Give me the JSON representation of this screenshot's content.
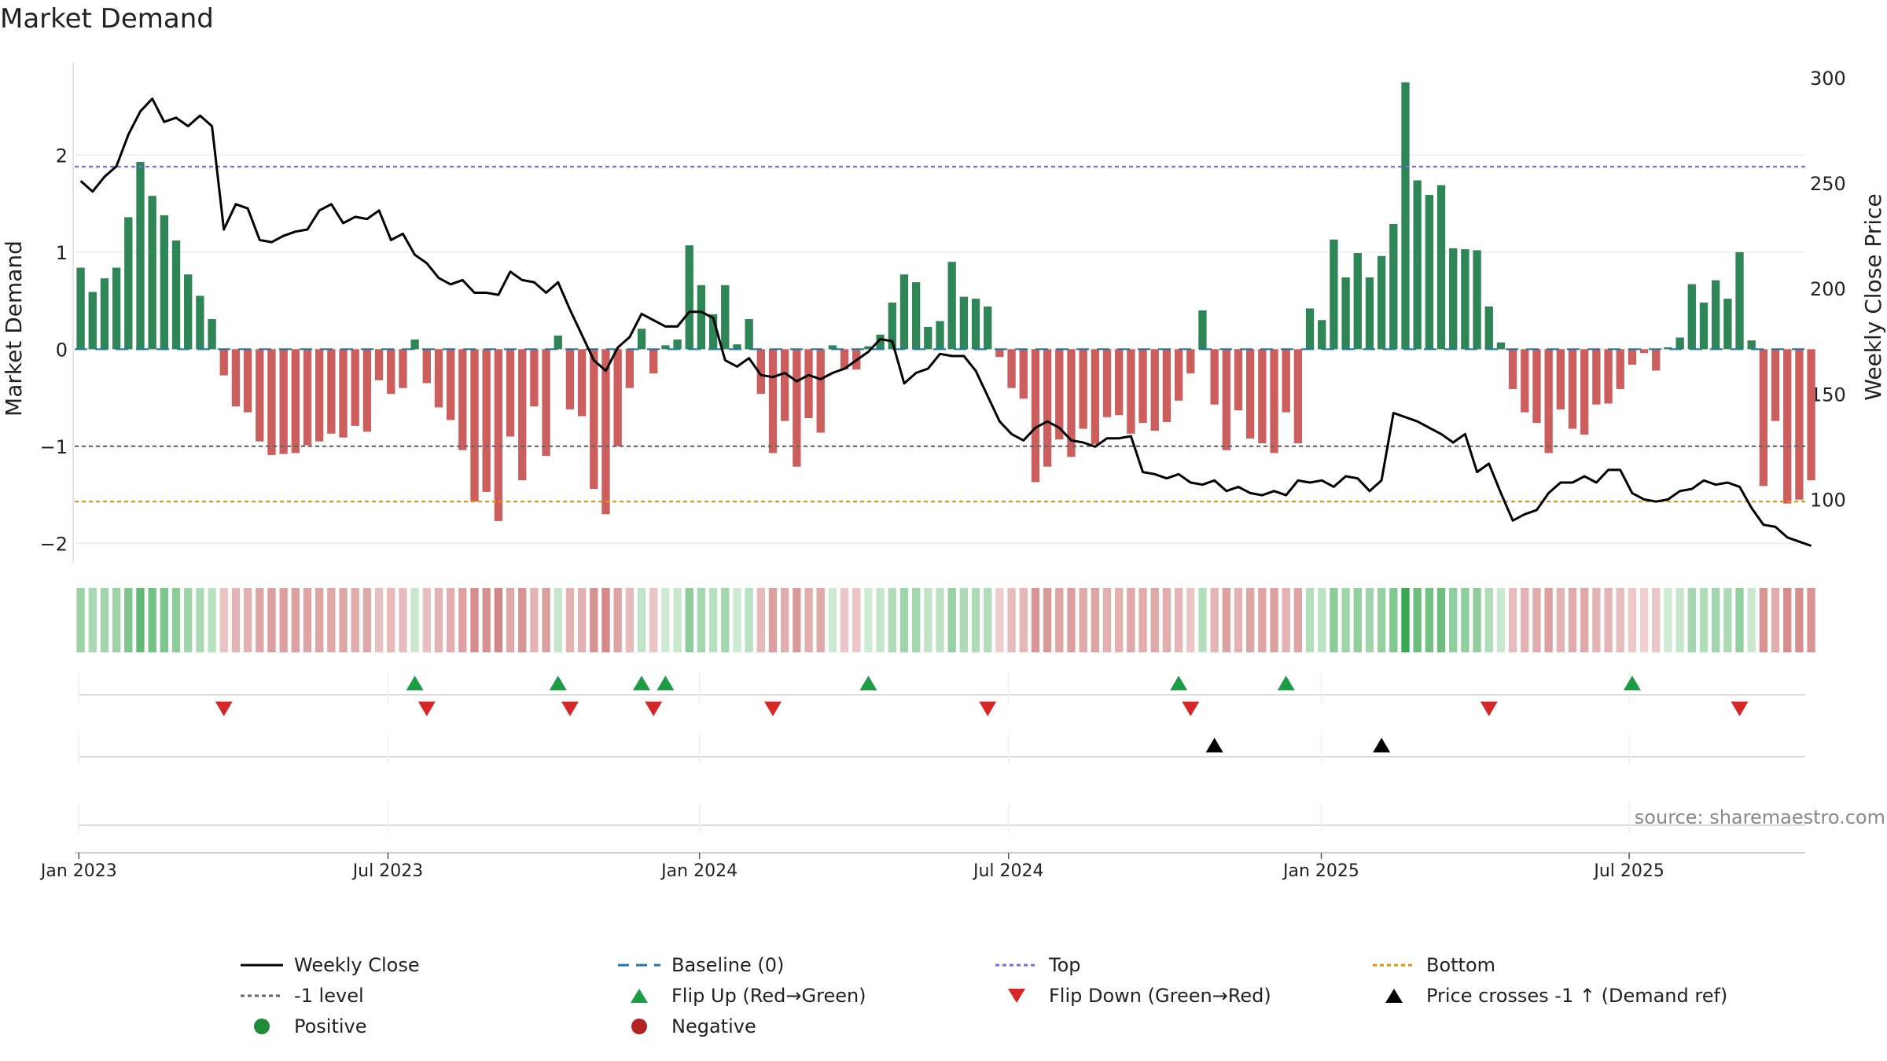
{
  "chart_data": {
    "type": "bar",
    "title": "Market Demand",
    "ylabel_left": "Market Demand",
    "ylabel_right": "Weekly Close Price",
    "ylim_left": [
      -2.2,
      2.95
    ],
    "ylim_right": [
      70,
      307
    ],
    "yticks_left": [
      2,
      1,
      0,
      -1,
      -2
    ],
    "ytick_labels_left": [
      "2",
      "1",
      "0",
      "−1",
      "−2"
    ],
    "yticks_right": [
      300,
      250,
      200,
      150,
      100
    ],
    "ytick_labels_right": [
      "300",
      "250",
      "200",
      "150",
      "100"
    ],
    "xtick_labels": [
      "Jan 2023",
      "Jul 2023",
      "Jan 2024",
      "Jul 2024",
      "Jan 2025",
      "Jul 2025"
    ],
    "xtick_weeks": [
      0.0,
      25.9,
      52.0,
      77.9,
      104.1,
      129.9
    ],
    "week_count": 145,
    "reference_lines": {
      "top": 1.88,
      "bottom": -1.57,
      "minus_one": -1.0,
      "baseline": 0
    },
    "demand": [
      0.84,
      0.59,
      0.73,
      0.84,
      1.36,
      1.93,
      1.58,
      1.38,
      1.12,
      0.77,
      0.55,
      0.31,
      -0.27,
      -0.59,
      -0.65,
      -0.95,
      -1.09,
      -1.08,
      -1.07,
      -0.99,
      -0.95,
      -0.87,
      -0.91,
      -0.79,
      -0.85,
      -0.32,
      -0.46,
      -0.4,
      0.1,
      -0.35,
      -0.6,
      -0.73,
      -1.04,
      -1.57,
      -1.47,
      -1.77,
      -0.9,
      -1.35,
      -0.59,
      -1.1,
      0.14,
      -0.62,
      -0.69,
      -1.44,
      -1.7,
      -1.0,
      -0.4,
      0.21,
      -0.25,
      0.04,
      0.1,
      1.07,
      0.66,
      0.36,
      0.66,
      0.05,
      0.31,
      -0.46,
      -1.07,
      -0.74,
      -1.21,
      -0.71,
      -0.86,
      0.04,
      -0.21,
      -0.21,
      0.03,
      0.15,
      0.48,
      0.77,
      0.69,
      0.23,
      0.29,
      0.9,
      0.54,
      0.52,
      0.44,
      -0.08,
      -0.4,
      -0.51,
      -1.37,
      -1.21,
      -0.93,
      -1.11,
      -0.82,
      -0.98,
      -0.7,
      -0.68,
      -0.87,
      -0.76,
      -0.84,
      -0.75,
      -0.53,
      -0.25,
      0.4,
      -0.57,
      -1.04,
      -0.63,
      -0.92,
      -0.97,
      -1.07,
      -0.65,
      -0.97,
      0.42,
      0.3,
      1.13,
      0.74,
      0.99,
      0.74,
      0.96,
      1.29,
      2.75,
      1.74,
      1.59,
      1.69,
      1.04,
      1.03,
      1.02,
      0.44,
      0.07,
      -0.41,
      -0.65,
      -0.76,
      -1.07,
      -0.62,
      -0.82,
      -0.88,
      -0.57,
      -0.56,
      -0.41,
      -0.16,
      -0.04,
      -0.22,
      0.02,
      0.12,
      0.67,
      0.48,
      0.71,
      0.52,
      1.0,
      0.09,
      -1.41,
      -0.74,
      -1.59,
      -1.55,
      -1.35
    ],
    "close": [
      251,
      246,
      253,
      258,
      273,
      284,
      290,
      279,
      281,
      277,
      282,
      277,
      228,
      240,
      238,
      223,
      222,
      225,
      227,
      228,
      237,
      240,
      231,
      234,
      233,
      237,
      223,
      226,
      216,
      212,
      205,
      202,
      204,
      198,
      198,
      197,
      208,
      204,
      203,
      198,
      203,
      190,
      178,
      166,
      161,
      172,
      177,
      188,
      185,
      182,
      182,
      189,
      189,
      186,
      166,
      163,
      167,
      159,
      158,
      160,
      156,
      159,
      157,
      160,
      162,
      166,
      170,
      176,
      175,
      155,
      160,
      162,
      169,
      168,
      168,
      161,
      149,
      137,
      131,
      128,
      134,
      137,
      134,
      128,
      127,
      125,
      129,
      129,
      130,
      113,
      112,
      110,
      112,
      108,
      107,
      109,
      104,
      106,
      103,
      102,
      104,
      102,
      109,
      108,
      109,
      106,
      111,
      110,
      104,
      109,
      141,
      139,
      137,
      134,
      131,
      127,
      131,
      113,
      117,
      103,
      90,
      93,
      95,
      103,
      108,
      108,
      111,
      108,
      114,
      114,
      103,
      100,
      99,
      100,
      104,
      105,
      109,
      107,
      108,
      106,
      96,
      88,
      87,
      82,
      80,
      78
    ],
    "flip_up_weeks": [
      28,
      40,
      47,
      49,
      66,
      92,
      101,
      130
    ],
    "flip_down_weeks": [
      12,
      29,
      41,
      48,
      58,
      76,
      93,
      118,
      139
    ],
    "price_cross_weeks": [
      95,
      109
    ],
    "source": "source: sharemaestro.com",
    "legend": [
      {
        "label": "Weekly Close",
        "symbol": "solid-line",
        "color": "#000000"
      },
      {
        "label": "Baseline (0)",
        "symbol": "dashed-line",
        "color": "#1f77b4"
      },
      {
        "label": "Top",
        "symbol": "dotted-line",
        "color": "#7b68ee"
      },
      {
        "label": "Bottom",
        "symbol": "dotted-line",
        "color": "#e8900c"
      },
      {
        "label": "-1 level",
        "symbol": "dotted-line",
        "color": "#666666"
      },
      {
        "label": "Flip Up (Red→Green)",
        "symbol": "triangle-up",
        "color": "#1e9b45"
      },
      {
        "label": "Flip Down (Green→Red)",
        "symbol": "triangle-down",
        "color": "#d62728"
      },
      {
        "label": "Price crosses -1 ↑ (Demand ref)",
        "symbol": "triangle-up",
        "color": "#000000"
      },
      {
        "label": "Positive",
        "symbol": "dot",
        "color": "#1e8a3a"
      },
      {
        "label": "Negative",
        "symbol": "dot",
        "color": "#b22222"
      }
    ],
    "colors": {
      "positive": "#2e8555",
      "negative": "#cc5e5e"
    }
  }
}
